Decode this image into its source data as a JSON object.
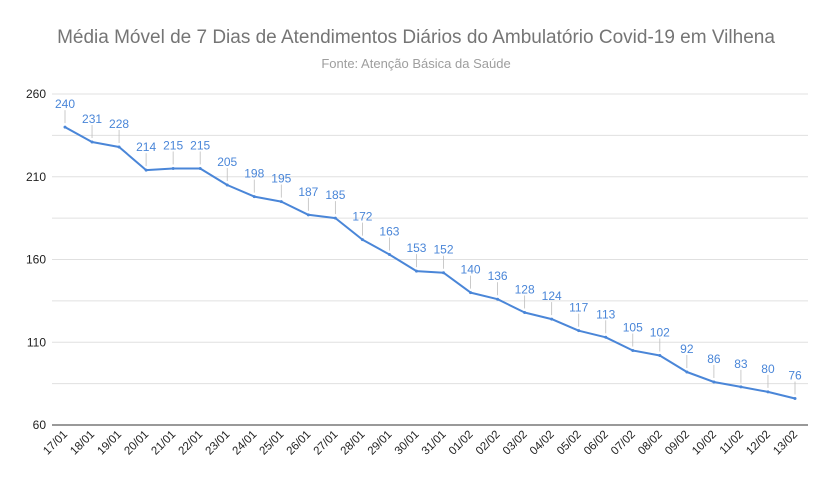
{
  "chart_data": {
    "type": "line",
    "title": "Média Móvel de 7 Dias de Atendimentos Diários do Ambulatório Covid-19 em Vilhena",
    "subtitle": "Fonte: Atenção Básica da Saúde",
    "xlabel": "",
    "ylabel": "",
    "ylim": [
      60,
      260
    ],
    "yticks": [
      60,
      110,
      160,
      210,
      260
    ],
    "grid": true,
    "categories": [
      "17/01",
      "18/01",
      "19/01",
      "20/01",
      "21/01",
      "22/01",
      "23/01",
      "24/01",
      "25/01",
      "26/01",
      "27/01",
      "28/01",
      "29/01",
      "30/01",
      "31/01",
      "01/02",
      "02/02",
      "03/02",
      "04/02",
      "05/02",
      "06/02",
      "07/02",
      "08/02",
      "09/02",
      "10/02",
      "11/02",
      "12/02",
      "13/02"
    ],
    "series": [
      {
        "values": [
          240,
          231,
          228,
          214,
          215,
          215,
          205,
          198,
          195,
          187,
          185,
          172,
          163,
          153,
          152,
          140,
          136,
          128,
          124,
          117,
          113,
          105,
          102,
          92,
          86,
          83,
          80,
          76
        ],
        "color": "#4a86d8"
      }
    ]
  }
}
